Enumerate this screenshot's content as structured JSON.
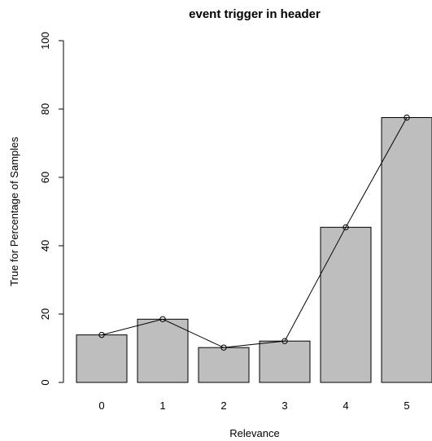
{
  "chart_data": {
    "type": "bar",
    "title": "event trigger in header",
    "xlabel": "Relevance",
    "ylabel": "True for Percentage of Samples",
    "categories": [
      "0",
      "1",
      "2",
      "3",
      "4",
      "5"
    ],
    "values": [
      13.9,
      18.5,
      10.2,
      12.1,
      45.4,
      77.5
    ],
    "ylim": [
      0,
      100
    ],
    "yticks": [
      "0",
      "20",
      "40",
      "60",
      "80",
      "100"
    ],
    "overlay": "line-with-points",
    "grid": false,
    "legend": "none",
    "colors": {
      "bar_fill": "#bebebe",
      "bar_stroke": "#000000",
      "line": "#000000"
    }
  }
}
